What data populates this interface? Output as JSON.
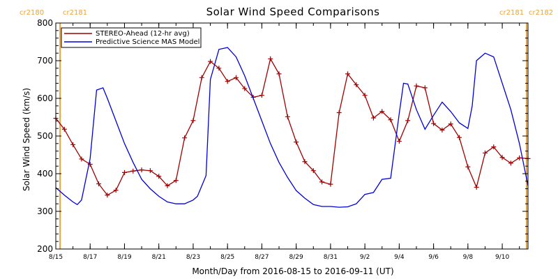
{
  "colors": {
    "stereo": "#a00000",
    "mas": "#0000dd",
    "cr_marker": "#e8a33a",
    "axis": "#000000"
  },
  "chart_data": {
    "type": "line",
    "title": "Solar Wind Speed Comparisons",
    "xlabel": "Month/Day from 2016-08-15 to 2016-09-11 (UT)",
    "ylabel": "Solar Wind Speed (km/s)",
    "xlim": [
      "2016-08-15",
      "2016-09-11T12:00"
    ],
    "ylim": [
      200,
      800
    ],
    "yticks": [
      200,
      300,
      400,
      500,
      600,
      700,
      800
    ],
    "xticks": [
      {
        "date": "2016-08-15",
        "label": "8/15"
      },
      {
        "date": "2016-08-17",
        "label": "8/17"
      },
      {
        "date": "2016-08-19",
        "label": "8/19"
      },
      {
        "date": "2016-08-21",
        "label": "8/21"
      },
      {
        "date": "2016-08-23",
        "label": "8/23"
      },
      {
        "date": "2016-08-25",
        "label": "8/25"
      },
      {
        "date": "2016-08-27",
        "label": "8/27"
      },
      {
        "date": "2016-08-29",
        "label": "8/29"
      },
      {
        "date": "2016-08-31",
        "label": "8/31"
      },
      {
        "date": "2016-09-02",
        "label": "9/2"
      },
      {
        "date": "2016-09-04",
        "label": "9/4"
      },
      {
        "date": "2016-09-06",
        "label": "9/6"
      },
      {
        "date": "2016-09-08",
        "label": "9/8"
      },
      {
        "date": "2016-09-10",
        "label": "9/10"
      }
    ],
    "grid": false,
    "legend_position": "top-left",
    "carrington_markers": [
      {
        "date": "2016-08-15T06:00",
        "left_label": "cr2180",
        "right_label": "cr2181"
      },
      {
        "date": "2016-09-11T12:00",
        "left_label": "cr2181",
        "right_label": "cr2182"
      }
    ],
    "series": [
      {
        "name": "STEREO-Ahead (12-hr avg)",
        "color": "#a00000",
        "marker": "plus",
        "x": [
          "2016-08-15",
          "2016-08-15T12:00",
          "2016-08-16",
          "2016-08-16T12:00",
          "2016-08-17",
          "2016-08-17T12:00",
          "2016-08-18",
          "2016-08-18T12:00",
          "2016-08-19",
          "2016-08-19T12:00",
          "2016-08-20",
          "2016-08-20T12:00",
          "2016-08-21",
          "2016-08-21T12:00",
          "2016-08-22",
          "2016-08-22T12:00",
          "2016-08-23",
          "2016-08-23T12:00",
          "2016-08-24",
          "2016-08-24T12:00",
          "2016-08-25",
          "2016-08-25T12:00",
          "2016-08-26",
          "2016-08-26T12:00",
          "2016-08-27",
          "2016-08-27T12:00",
          "2016-08-28",
          "2016-08-28T12:00",
          "2016-08-29",
          "2016-08-29T12:00",
          "2016-08-30",
          "2016-08-30T12:00",
          "2016-08-31",
          "2016-08-31T12:00",
          "2016-09-01",
          "2016-09-01T12:00",
          "2016-09-02",
          "2016-09-02T12:00",
          "2016-09-03",
          "2016-09-03T12:00",
          "2016-09-04",
          "2016-09-04T12:00",
          "2016-09-05",
          "2016-09-05T12:00",
          "2016-09-06",
          "2016-09-06T12:00",
          "2016-09-07",
          "2016-09-07T12:00",
          "2016-09-08",
          "2016-09-08T12:00",
          "2016-09-09",
          "2016-09-09T12:00",
          "2016-09-10",
          "2016-09-10T12:00",
          "2016-09-11",
          "2016-09-11T12:00"
        ],
        "values": [
          547,
          518,
          477,
          439,
          425,
          373,
          343,
          356,
          403,
          407,
          410,
          408,
          393,
          368,
          382,
          495,
          541,
          655,
          698,
          680,
          645,
          655,
          626,
          603,
          608,
          705,
          665,
          551,
          484,
          432,
          408,
          378,
          372,
          562,
          665,
          636,
          608,
          548,
          565,
          543,
          486,
          541,
          633,
          628,
          533,
          516,
          532,
          496,
          418,
          364,
          455,
          471,
          443,
          428,
          442,
          440
        ]
      },
      {
        "name": "Predictive Science MAS Model",
        "color": "#0000dd",
        "marker": "none",
        "x": [
          "2016-08-15",
          "2016-08-15T12:00",
          "2016-08-16",
          "2016-08-16T06:00",
          "2016-08-16T12:00",
          "2016-08-17",
          "2016-08-17T09:00",
          "2016-08-17T18:00",
          "2016-08-18",
          "2016-08-18T12:00",
          "2016-08-19",
          "2016-08-19T12:00",
          "2016-08-20",
          "2016-08-20T12:00",
          "2016-08-21",
          "2016-08-21T12:00",
          "2016-08-22",
          "2016-08-22T12:00",
          "2016-08-23",
          "2016-08-23T06:00",
          "2016-08-23T18:00",
          "2016-08-24",
          "2016-08-24T12:00",
          "2016-08-25",
          "2016-08-25T12:00",
          "2016-08-26",
          "2016-08-26T12:00",
          "2016-08-27",
          "2016-08-27T12:00",
          "2016-08-28",
          "2016-08-28T12:00",
          "2016-08-29",
          "2016-08-29T12:00",
          "2016-08-30",
          "2016-08-30T12:00",
          "2016-08-31",
          "2016-08-31T12:00",
          "2016-09-01",
          "2016-09-01T12:00",
          "2016-09-02",
          "2016-09-02T12:00",
          "2016-09-03",
          "2016-09-03T12:00",
          "2016-09-04",
          "2016-09-04T06:00",
          "2016-09-04T12:00",
          "2016-09-05",
          "2016-09-05T12:00",
          "2016-09-06",
          "2016-09-06T12:00",
          "2016-09-07",
          "2016-09-07T12:00",
          "2016-09-08",
          "2016-09-08T06:00",
          "2016-09-08T12:00",
          "2016-09-09",
          "2016-09-09T12:00",
          "2016-09-10",
          "2016-09-10T12:00",
          "2016-09-11",
          "2016-09-11T12:00"
        ],
        "values": [
          363,
          343,
          325,
          318,
          330,
          440,
          622,
          628,
          600,
          540,
          480,
          430,
          385,
          360,
          340,
          325,
          320,
          320,
          330,
          340,
          395,
          650,
          730,
          735,
          710,
          660,
          600,
          540,
          480,
          430,
          390,
          355,
          335,
          318,
          313,
          313,
          311,
          312,
          320,
          345,
          350,
          385,
          388,
          560,
          640,
          638,
          570,
          518,
          555,
          590,
          565,
          535,
          520,
          580,
          700,
          720,
          710,
          640,
          570,
          480,
          368
        ]
      }
    ]
  }
}
